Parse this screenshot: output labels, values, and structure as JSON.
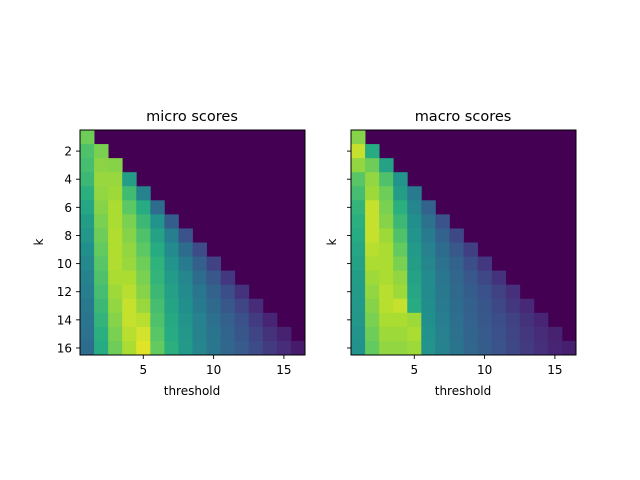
{
  "chart_data": [
    {
      "type": "heatmap",
      "title": "micro scores",
      "xlabel": "threshold",
      "ylabel": "k",
      "x_range": [
        1,
        16
      ],
      "y_range": [
        1,
        16
      ],
      "xticks": [
        5,
        10,
        15
      ],
      "yticks": [
        2,
        4,
        6,
        8,
        10,
        12,
        14,
        16
      ],
      "ytick_labels_visible": true,
      "colormap": "viridis",
      "note_value_scale": "relative score 0-1 (lower-triangular, threshold <= k)",
      "rows": [
        [
          0.78
        ],
        [
          0.72,
          0.8
        ],
        [
          0.7,
          0.83,
          0.82
        ],
        [
          0.68,
          0.85,
          0.85,
          0.56
        ],
        [
          0.64,
          0.84,
          0.86,
          0.69,
          0.45
        ],
        [
          0.6,
          0.82,
          0.88,
          0.75,
          0.62,
          0.36
        ],
        [
          0.56,
          0.8,
          0.88,
          0.8,
          0.68,
          0.52,
          0.3
        ],
        [
          0.53,
          0.78,
          0.89,
          0.82,
          0.72,
          0.58,
          0.43,
          0.26
        ],
        [
          0.5,
          0.76,
          0.89,
          0.84,
          0.75,
          0.62,
          0.48,
          0.36,
          0.23
        ],
        [
          0.47,
          0.74,
          0.89,
          0.85,
          0.78,
          0.65,
          0.52,
          0.42,
          0.31,
          0.2
        ],
        [
          0.45,
          0.72,
          0.88,
          0.88,
          0.8,
          0.66,
          0.55,
          0.46,
          0.36,
          0.28,
          0.17
        ],
        [
          0.43,
          0.7,
          0.86,
          0.9,
          0.82,
          0.68,
          0.57,
          0.48,
          0.4,
          0.32,
          0.24,
          0.15
        ],
        [
          0.41,
          0.68,
          0.84,
          0.92,
          0.85,
          0.7,
          0.59,
          0.5,
          0.42,
          0.35,
          0.28,
          0.21,
          0.13
        ],
        [
          0.39,
          0.66,
          0.82,
          0.92,
          0.9,
          0.72,
          0.61,
          0.52,
          0.44,
          0.37,
          0.31,
          0.25,
          0.18,
          0.11
        ],
        [
          0.38,
          0.64,
          0.8,
          0.9,
          0.94,
          0.74,
          0.62,
          0.53,
          0.45,
          0.39,
          0.33,
          0.27,
          0.21,
          0.15,
          0.1
        ],
        [
          0.36,
          0.62,
          0.78,
          0.88,
          0.96,
          0.76,
          0.64,
          0.54,
          0.46,
          0.4,
          0.34,
          0.29,
          0.23,
          0.18,
          0.13,
          0.08
        ]
      ]
    },
    {
      "type": "heatmap",
      "title": "macro scores",
      "xlabel": "threshold",
      "ylabel": "k",
      "x_range": [
        1,
        16
      ],
      "y_range": [
        1,
        16
      ],
      "xticks": [
        5,
        10,
        15
      ],
      "yticks": [
        2,
        4,
        6,
        8,
        10,
        12,
        14,
        16
      ],
      "ytick_labels_visible": false,
      "colormap": "viridis",
      "note_value_scale": "relative score 0-1 (lower-triangular, threshold <= k)",
      "rows": [
        [
          0.82
        ],
        [
          0.92,
          0.62
        ],
        [
          0.84,
          0.78,
          0.58
        ],
        [
          0.74,
          0.84,
          0.72,
          0.52
        ],
        [
          0.7,
          0.86,
          0.78,
          0.56,
          0.42
        ],
        [
          0.66,
          0.92,
          0.8,
          0.64,
          0.46,
          0.32
        ],
        [
          0.64,
          0.92,
          0.82,
          0.68,
          0.5,
          0.38,
          0.26
        ],
        [
          0.62,
          0.92,
          0.86,
          0.72,
          0.52,
          0.42,
          0.32,
          0.22
        ],
        [
          0.6,
          0.9,
          0.88,
          0.76,
          0.54,
          0.44,
          0.36,
          0.28,
          0.19
        ],
        [
          0.58,
          0.88,
          0.88,
          0.8,
          0.56,
          0.46,
          0.38,
          0.32,
          0.24,
          0.17
        ],
        [
          0.56,
          0.86,
          0.88,
          0.84,
          0.58,
          0.48,
          0.4,
          0.34,
          0.28,
          0.22,
          0.15
        ],
        [
          0.55,
          0.84,
          0.9,
          0.86,
          0.6,
          0.48,
          0.41,
          0.35,
          0.3,
          0.25,
          0.2,
          0.14
        ],
        [
          0.54,
          0.82,
          0.9,
          0.92,
          0.62,
          0.49,
          0.42,
          0.36,
          0.31,
          0.27,
          0.22,
          0.17,
          0.12
        ],
        [
          0.53,
          0.8,
          0.88,
          0.88,
          0.86,
          0.5,
          0.43,
          0.37,
          0.32,
          0.28,
          0.24,
          0.2,
          0.15,
          0.11
        ],
        [
          0.52,
          0.78,
          0.86,
          0.86,
          0.88,
          0.51,
          0.44,
          0.38,
          0.33,
          0.29,
          0.25,
          0.21,
          0.17,
          0.13,
          0.1
        ],
        [
          0.51,
          0.76,
          0.84,
          0.84,
          0.86,
          0.52,
          0.45,
          0.39,
          0.34,
          0.3,
          0.26,
          0.22,
          0.18,
          0.14,
          0.11,
          0.09
        ]
      ]
    }
  ]
}
